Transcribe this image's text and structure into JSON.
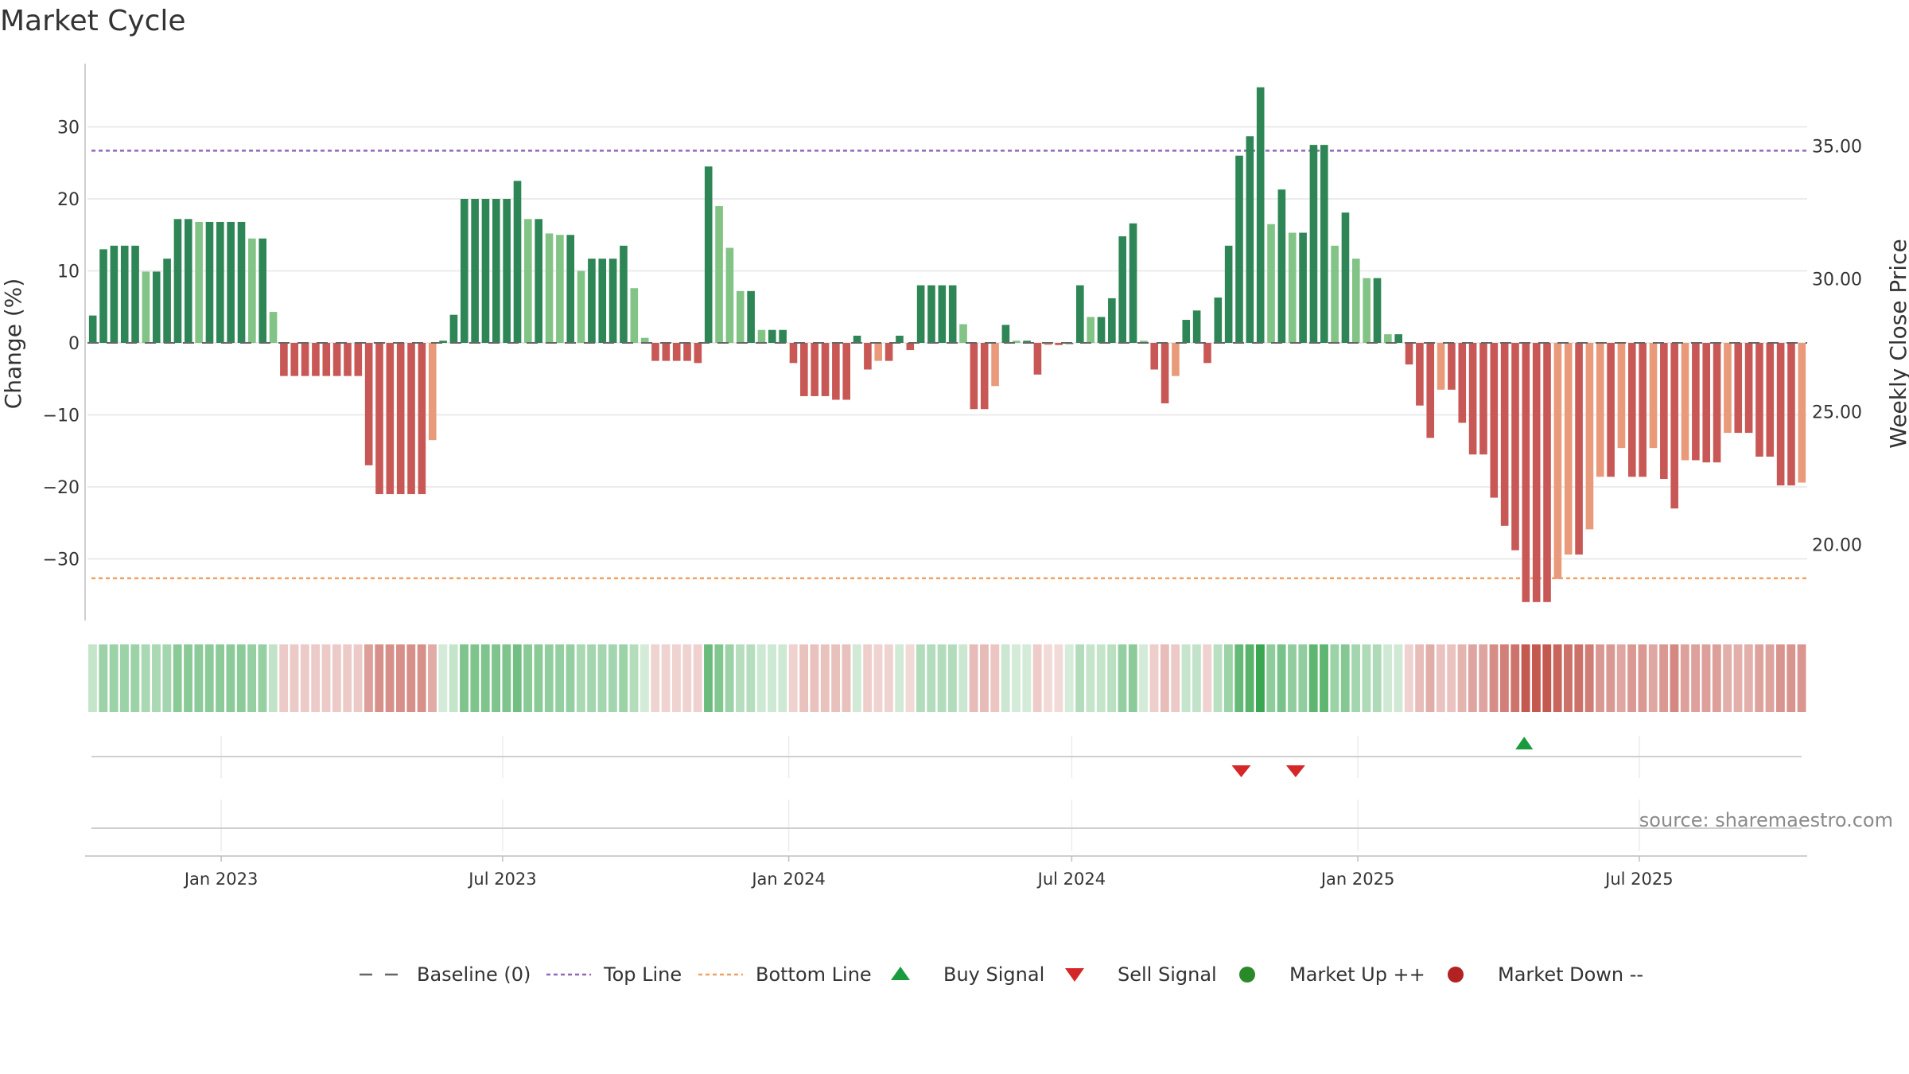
{
  "title": "Market Cycle",
  "source": "source: sharemaestro.com",
  "chart_data": {
    "type": "bar",
    "ylabel": "Change (%)",
    "y2label": "Weekly Close Price",
    "ylim": [
      -39,
      39
    ],
    "yticks": [
      30,
      20,
      10,
      0,
      -10,
      -20,
      -30
    ],
    "ytick_labels": [
      "30",
      "20",
      "10",
      "0",
      "−10",
      "−20",
      "−30"
    ],
    "y2lim": [
      17.14,
      38.1
    ],
    "y2ticks": [
      35,
      30,
      25,
      20
    ],
    "y2tick_labels": [
      "35.00",
      "30.00",
      "25.00",
      "20.00"
    ],
    "top_line": 26.7,
    "bottom_line": -32.7,
    "x_start": "2022-10-07",
    "x_end": "2025-10-17",
    "bar_interval": "weekly",
    "xticks": [
      {
        "date": "2023-01-01",
        "label": "Jan 2023"
      },
      {
        "date": "2023-07-01",
        "label": "Jul 2023"
      },
      {
        "date": "2024-01-01",
        "label": "Jan 2024"
      },
      {
        "date": "2024-07-01",
        "label": "Jul 2024"
      },
      {
        "date": "2025-01-01",
        "label": "Jan 2025"
      },
      {
        "date": "2025-07-01",
        "label": "Jul 2025"
      }
    ],
    "values": [
      3.8,
      13,
      13.5,
      13.5,
      13.5,
      9.9,
      9.9,
      11.7,
      17.2,
      17.2,
      16.8,
      16.8,
      16.8,
      16.8,
      16.8,
      14.5,
      14.5,
      4.3,
      -4.6,
      -4.6,
      -4.6,
      -4.6,
      -4.6,
      -4.6,
      -4.6,
      -4.6,
      -17,
      -21,
      -21,
      -21,
      -21,
      -21,
      -13.5,
      0.3,
      3.9,
      20,
      20,
      20,
      20,
      20,
      22.5,
      17.2,
      17.2,
      15.2,
      15,
      15,
      10,
      11.7,
      11.7,
      11.7,
      13.5,
      7.6,
      0.7,
      -2.5,
      -2.5,
      -2.5,
      -2.5,
      -2.8,
      24.5,
      19,
      13.2,
      7.2,
      7.2,
      1.8,
      1.8,
      1.8,
      -2.8,
      -7.4,
      -7.4,
      -7.4,
      -7.9,
      -7.9,
      1,
      -3.7,
      -2.5,
      -2.5,
      1,
      -1,
      8,
      8,
      8,
      8,
      2.6,
      -9.2,
      -9.2,
      -6,
      2.5,
      0.3,
      0.3,
      -4.4,
      -0.3,
      -0.3,
      0,
      8,
      3.6,
      3.6,
      6.2,
      14.8,
      16.6,
      0.3,
      -3.7,
      -8.4,
      -4.6,
      3.2,
      4.5,
      -2.8,
      6.3,
      13.5,
      26,
      28.7,
      35.5,
      16.5,
      21.3,
      15.3,
      15.3,
      27.5,
      27.5,
      13.5,
      18.1,
      11.7,
      9,
      9,
      1.2,
      1.2,
      -3,
      -8.7,
      -13.2,
      -6.5,
      -6.5,
      -11.1,
      -15.5,
      -15.5,
      -21.5,
      -25.4,
      -28.8,
      -36,
      -36,
      -36,
      -32.8,
      -29.4,
      -29.4,
      -25.9,
      -18.6,
      -18.6,
      -14.6,
      -18.6,
      -18.6,
      -14.6,
      -18.9,
      -23,
      -16.3,
      -16.3,
      -16.6,
      -16.6,
      -12.5,
      -12.5,
      -12.5,
      -15.8,
      -15.8,
      -19.8,
      -19.8,
      -19.4
    ],
    "bar_shades": [
      "dark",
      "light"
    ],
    "colors": {
      "dark_up": "#2e8555",
      "light_up": "#82c386",
      "dark_down": "#c85856",
      "light_down": "#e89a7a",
      "top_line": "#9467bd",
      "bottom_line": "#f0a060",
      "baseline": "#666666",
      "buy": "#1a9a3e",
      "sell": "#d62728",
      "market_up": "#2a8a2a",
      "market_down": "#b22222"
    },
    "buy_signals": [
      "2025-04-18"
    ],
    "sell_signals": [
      "2024-10-18",
      "2024-11-22"
    ],
    "legend": [
      {
        "label": "Baseline (0)",
        "marker": "dashed-line",
        "color": "#666666"
      },
      {
        "label": "Top Line",
        "marker": "dotted-line",
        "color": "#9467bd"
      },
      {
        "label": "Bottom Line",
        "marker": "dotted-line",
        "color": "#f0a060"
      },
      {
        "label": "Buy Signal",
        "marker": "triangle-up",
        "color": "#1a9a3e"
      },
      {
        "label": "Sell Signal",
        "marker": "triangle-down",
        "color": "#d62728"
      },
      {
        "label": "Market Up ++",
        "marker": "circle",
        "color": "#2a8a2a"
      },
      {
        "label": "Market Down --",
        "marker": "circle",
        "color": "#b22222"
      }
    ],
    "legend_position": "bottom-center"
  }
}
